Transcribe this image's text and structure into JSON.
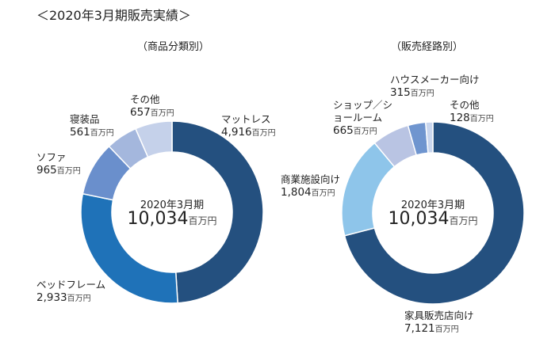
{
  "title": "＜2020年3月期販売実績＞",
  "unit": "百万円",
  "chart_data": [
    {
      "type": "pie",
      "donut": true,
      "title": "（商品分類別）",
      "center_label": "2020年3月期",
      "center_value": "10,034",
      "categories": [
        "マットレス",
        "ベッドフレーム",
        "ソファ",
        "寝装品",
        "その他"
      ],
      "values": [
        4916,
        2933,
        965,
        561,
        657
      ],
      "value_labels": [
        "4,916",
        "2,933",
        "965",
        "561",
        "657"
      ],
      "colors": [
        "#24507f",
        "#1f72b8",
        "#6a8fcc",
        "#a4b7dd",
        "#c5d1ea"
      ]
    },
    {
      "type": "pie",
      "donut": true,
      "title": "（販売経路別）",
      "center_label": "2020年3月期",
      "center_value": "10,034",
      "categories": [
        "家具販売店向け",
        "商業施設向け",
        "ショップ／ショールーム",
        "ハウスメーカー向け",
        "その他"
      ],
      "values": [
        7121,
        1804,
        665,
        315,
        128
      ],
      "value_labels": [
        "7,121",
        "1,804",
        "665",
        "315",
        "128"
      ],
      "colors": [
        "#24507f",
        "#8ec5ea",
        "#b9c4e3",
        "#6f95cf",
        "#c9d6ee"
      ]
    }
  ]
}
